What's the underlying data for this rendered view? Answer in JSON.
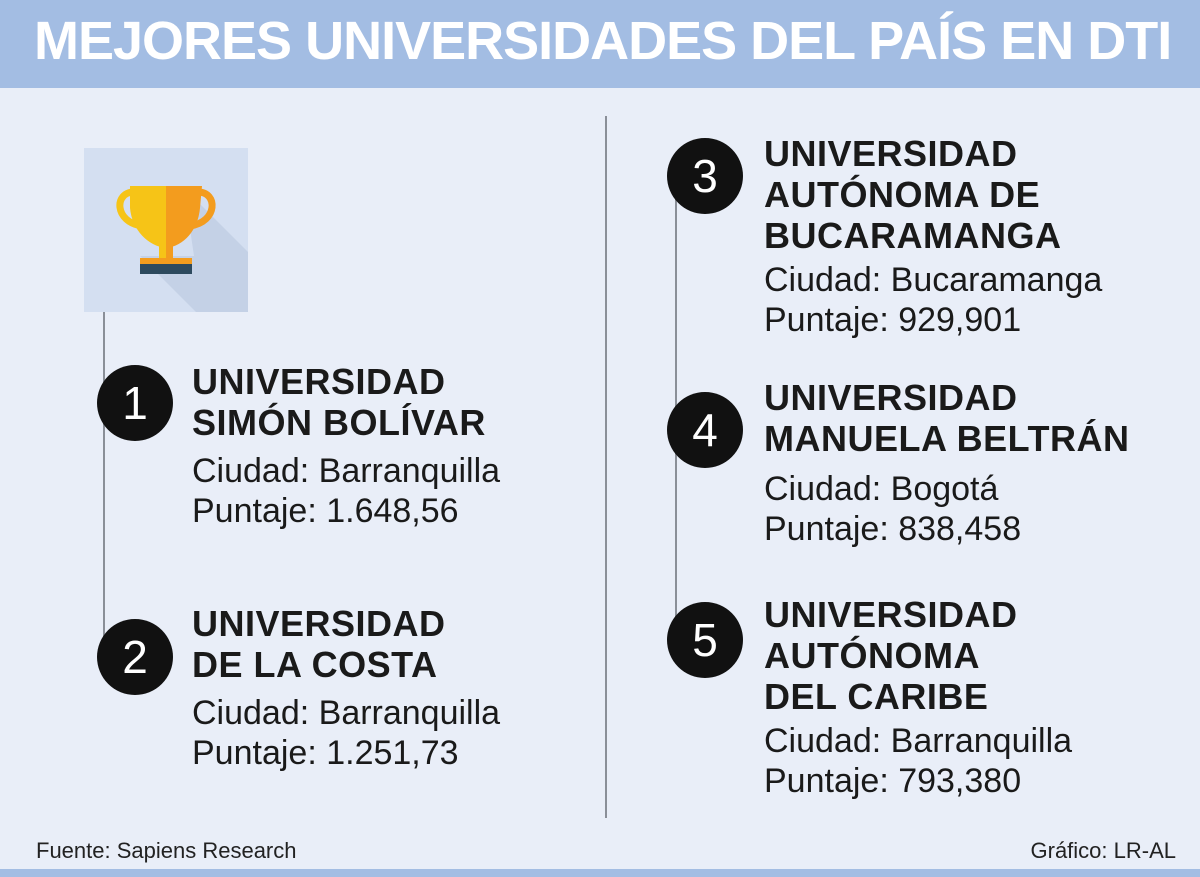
{
  "title": "MEJORES UNIVERSIDADES DEL PAÍS EN DTI",
  "icon": "trophy-icon",
  "colors": {
    "header": "#a3bde3",
    "background": "#e9eef8",
    "badge": "#111111",
    "trophy_left": "#f6c417",
    "trophy_right": "#f39c1e",
    "trophy_base": "#2d4a5e"
  },
  "universities": [
    {
      "rank": "1",
      "name": "UNIVERSIDAD\nSIMÓN BOLÍVAR",
      "city": "Ciudad: Barranquilla",
      "score": "Puntaje: 1.648,56"
    },
    {
      "rank": "2",
      "name": "UNIVERSIDAD\nDE LA COSTA",
      "city": "Ciudad: Barranquilla",
      "score": "Puntaje: 1.251,73"
    },
    {
      "rank": "3",
      "name": "UNIVERSIDAD\nAUTÓNOMA DE\nBUCARAMANGA",
      "city": "Ciudad: Bucaramanga",
      "score": "Puntaje: 929,901"
    },
    {
      "rank": "4",
      "name": "UNIVERSIDAD\nMANUELA BELTRÁN",
      "city": "Ciudad: Bogotá",
      "score": "Puntaje: 838,458"
    },
    {
      "rank": "5",
      "name": "UNIVERSIDAD\nAUTÓNOMA\nDEL CARIBE",
      "city": "Ciudad: Barranquilla",
      "score": "Puntaje: 793,380"
    }
  ],
  "footer": {
    "source": "Fuente: Sapiens Research",
    "credit": "Gráfico: LR-AL"
  }
}
